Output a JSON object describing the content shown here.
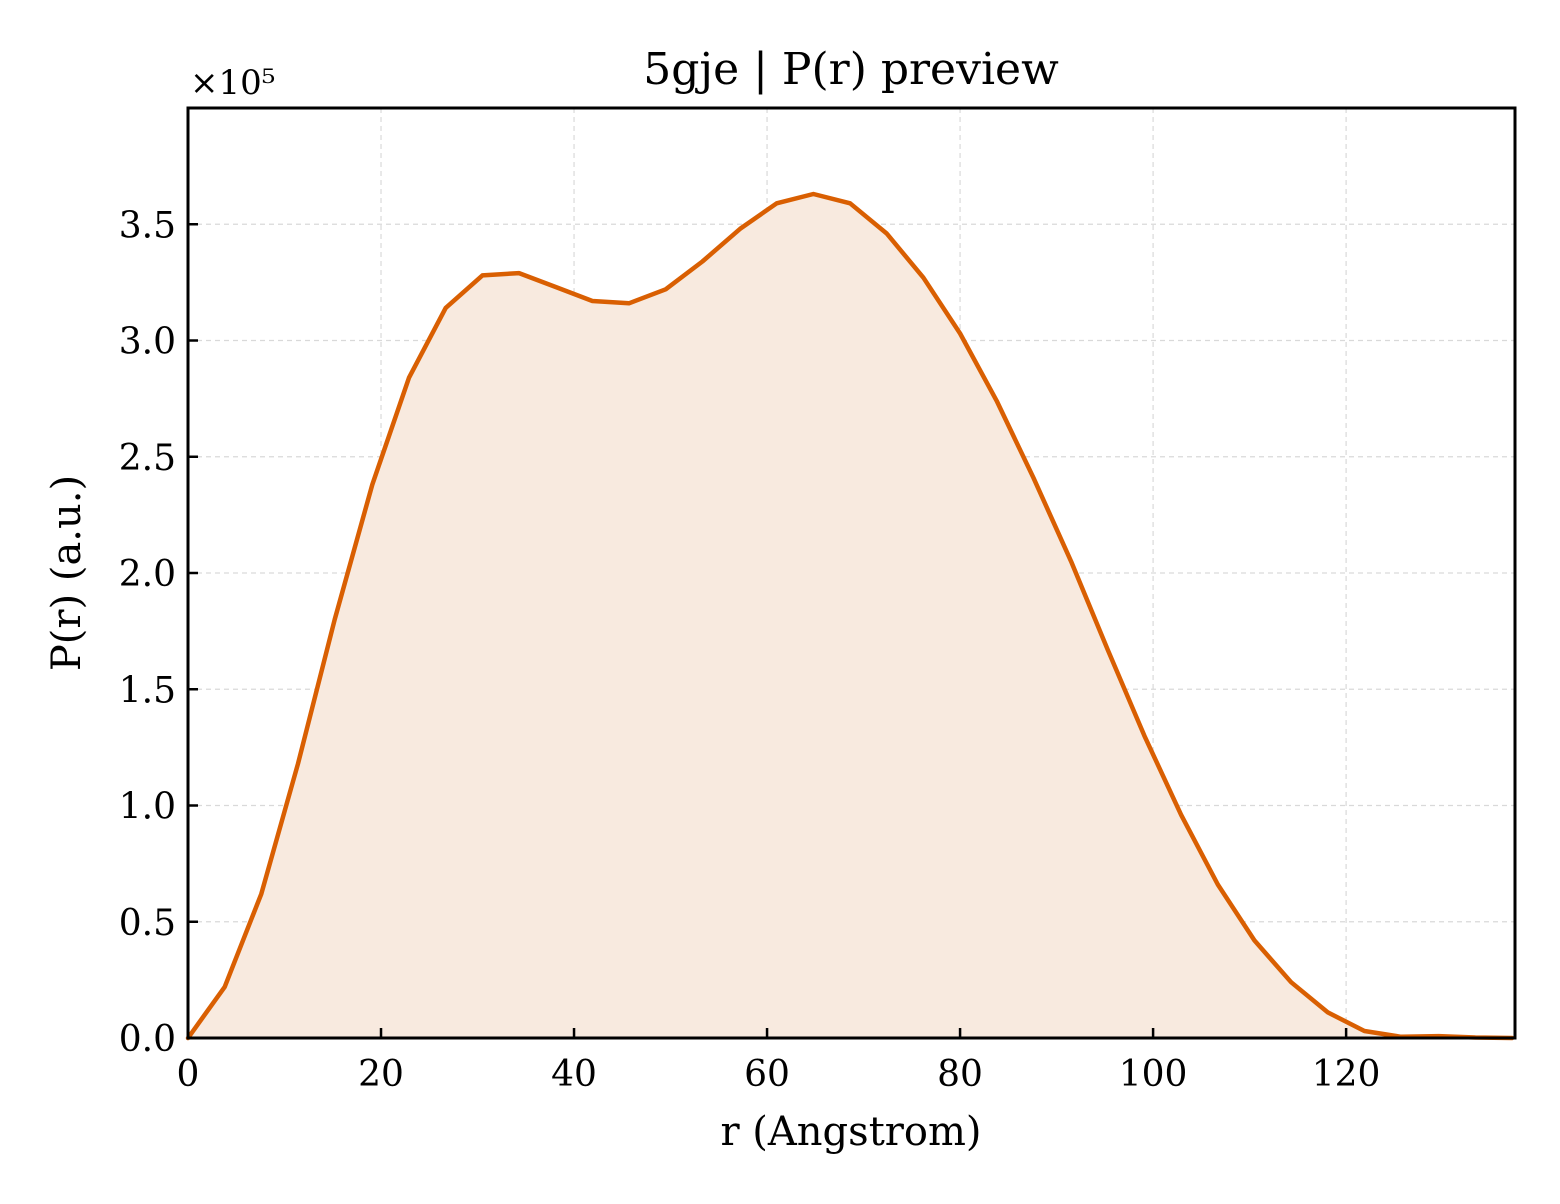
{
  "chart_data": {
    "type": "area",
    "title": "5gje | P(r) preview",
    "xlabel": "r (Angstrom)",
    "ylabel": "P(r) (a.u.)",
    "y_multiplier_label": "×10⁵",
    "xlim": [
      0,
      137.5
    ],
    "ylim": [
      0,
      4.0
    ],
    "y_scale": 100000,
    "xticks": [
      0,
      20,
      40,
      60,
      80,
      100,
      120
    ],
    "xtick_labels": [
      "0",
      "20",
      "40",
      "60",
      "80",
      "100",
      "120"
    ],
    "yticks": [
      0.0,
      0.5,
      1.0,
      1.5,
      2.0,
      2.5,
      3.0,
      3.5
    ],
    "ytick_labels": [
      "0.0",
      "0.5",
      "1.0",
      "1.5",
      "2.0",
      "2.5",
      "3.0",
      "3.5"
    ],
    "grid": true,
    "legend": "none",
    "line_color": "#d95f02",
    "fill_color": "#f8eadf",
    "series": [
      {
        "x": [
          0,
          3.8,
          7.6,
          11.4,
          15.2,
          19.1,
          22.9,
          26.7,
          30.5,
          34.3,
          38.1,
          41.9,
          45.7,
          49.5,
          53.3,
          57.2,
          61.0,
          64.8,
          68.6,
          72.4,
          76.2,
          80.0,
          83.8,
          87.6,
          91.5,
          95.3,
          99.1,
          102.9,
          106.7,
          110.5,
          114.3,
          118.1,
          121.9,
          125.7,
          129.6,
          133.4,
          137.2
        ],
        "y": [
          0.0,
          0.22,
          0.62,
          1.18,
          1.8,
          2.38,
          2.84,
          3.14,
          3.28,
          3.29,
          3.23,
          3.17,
          3.16,
          3.22,
          3.34,
          3.48,
          3.59,
          3.63,
          3.59,
          3.46,
          3.27,
          3.03,
          2.74,
          2.41,
          2.05,
          1.67,
          1.3,
          0.96,
          0.66,
          0.42,
          0.24,
          0.11,
          0.03,
          0.005,
          0.008,
          0.002,
          0.0
        ]
      }
    ]
  }
}
